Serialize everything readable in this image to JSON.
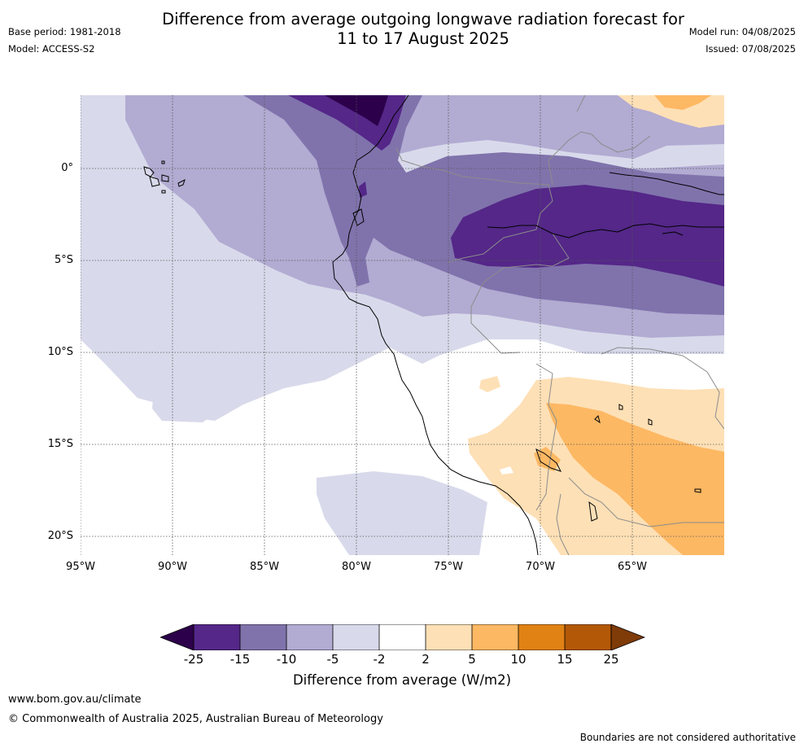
{
  "header": {
    "title_line1": "Difference from average outgoing longwave radiation forecast for",
    "title_line2": "11 to 17 August 2025",
    "base_period": "Base period: 1981-2018",
    "model": "Model: ACCESS-S2",
    "model_run": "Model run: 04/08/2025",
    "issued": "Issued: 07/08/2025"
  },
  "map": {
    "lat_labels": [
      "0°",
      "5°S",
      "10°S",
      "15°S",
      "20°S"
    ],
    "lon_labels": [
      "95°W",
      "90°W",
      "85°W",
      "80°W",
      "75°W",
      "70°W",
      "65°W"
    ],
    "colors": {
      "le_m25": "#2d004b",
      "m25_m15": "#542788",
      "m15_m10": "#8073ac",
      "m10_m5": "#b2abd2",
      "m5_m2": "#d8daeb",
      "m2_2": "#ffffff",
      "p2_p5": "#fee0b6",
      "p5_p10": "#fdb863",
      "p10_p15": "#e08214",
      "p15_p25": "#b35806",
      "ge_p25": "#7f3b08"
    }
  },
  "colorbar": {
    "title": "Difference from average (W/m2)",
    "ticks": [
      "-25",
      "-15",
      "-10",
      "-5",
      "-2",
      "2",
      "5",
      "10",
      "15",
      "25"
    ]
  },
  "footer": {
    "website": "www.bom.gov.au/climate",
    "copyright": "© Commonwealth of Australia 2025, Australian Bureau of Meteorology",
    "disclaimer": "Boundaries are not considered authoritative"
  }
}
